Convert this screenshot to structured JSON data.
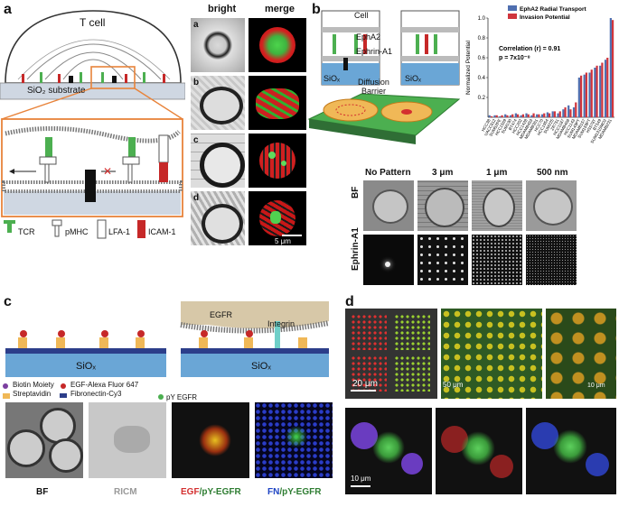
{
  "panels": {
    "a": {
      "letter": "a",
      "schematic": {
        "t_cell": "T cell",
        "substrate": "SiO₂ substrate"
      },
      "legend": {
        "tcr": "TCR",
        "pmhc": "pMHC",
        "lfa1": "LFA-1",
        "icam1": "ICAM-1"
      },
      "columns": {
        "bright": "bright",
        "merge": "merge"
      },
      "rows": [
        "a",
        "b",
        "c",
        "d"
      ],
      "scalebar": "5 μm"
    },
    "b": {
      "letter": "b",
      "schematic": {
        "cell": "Cell",
        "epha2": "EphA2",
        "ephrin": "Ephrin-A1",
        "diffusion": "Diffusion",
        "barrier": "Barrier",
        "siox": "SiOₓ"
      },
      "grid": {
        "columns": [
          "No Pattern",
          "3 μm",
          "1 μm",
          "500 nm"
        ],
        "rows": [
          "BF",
          "Ephrin-A1"
        ]
      }
    },
    "c": {
      "letter": "c",
      "schematic": {
        "siox": "SiOₓ",
        "egfr": "EGFR",
        "integrin": "Integrin"
      },
      "legend": {
        "biotin": "Biotin Moiety",
        "egf": "EGF-Alexa Fluor 647",
        "strep": "Streptavidin",
        "fibro": "Fibronectin-Cy3",
        "py": "pY EGFR"
      },
      "captions": {
        "bf": "BF",
        "ricm": "RICM",
        "egf_a": "EGF",
        "egf_b": "/pY-EGFR",
        "fn_a": "FN",
        "fn_b": "/pY-EGFR"
      }
    },
    "d": {
      "letter": "d",
      "scales": [
        "20 μm",
        "50 μm",
        "10 μm",
        "10 μm"
      ]
    }
  },
  "chart_data": {
    "type": "bar",
    "legend": [
      "EphA2 Radial Transport",
      "Invasion Potential"
    ],
    "legend_position": "top-right",
    "annotation": [
      "Correlation (r) = 0.91",
      "p = 7x10⁻⁸"
    ],
    "ylabel": "Normalized Potential",
    "ylim": [
      0,
      1.0
    ],
    "yticks": [
      "0.2",
      "0.4",
      "0.6",
      "0.8",
      "1.0"
    ],
    "categories": [
      "HCC38",
      "UACC812",
      "SUM52PE",
      "HCC1569",
      "SUM190",
      "BT474",
      "HCC202",
      "HCC1428",
      "MDAMB453",
      "MDAMB361",
      "HCC70",
      "HCC1954",
      "SUM225",
      "ZR751",
      "HCC1187",
      "MDAMB468",
      "HCC1143",
      "SUM149PT",
      "MDAMB157",
      "SUM159PT",
      "HS578T",
      "BT549",
      "SUM1315MO2",
      "MDAMB231"
    ],
    "series": [
      {
        "name": "EphA2 Radial Transport",
        "color": "#4f6fb0",
        "values": [
          0.02,
          0.02,
          0.01,
          0.03,
          0.02,
          0.04,
          0.02,
          0.04,
          0.02,
          0.03,
          0.03,
          0.05,
          0.06,
          0.04,
          0.08,
          0.12,
          0.1,
          0.4,
          0.43,
          0.45,
          0.5,
          0.52,
          0.58,
          1.0
        ]
      },
      {
        "name": "Invasion Potential",
        "color": "#d0353d",
        "values": [
          0.01,
          0.02,
          0.02,
          0.02,
          0.03,
          0.03,
          0.03,
          0.03,
          0.04,
          0.03,
          0.04,
          0.04,
          0.06,
          0.06,
          0.1,
          0.08,
          0.15,
          0.42,
          0.45,
          0.48,
          0.52,
          0.55,
          0.6,
          0.98
        ]
      }
    ]
  }
}
